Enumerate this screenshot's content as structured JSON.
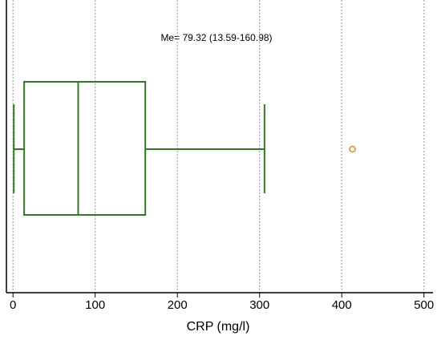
{
  "chart_data": {
    "type": "box",
    "annotation": "Me= 79.32 (13.59-160.98)",
    "x_label": "CRP (mg/l)",
    "boxes": [
      {
        "whisker_low": 1,
        "q1": 13.59,
        "median": 79.32,
        "q3": 160.98,
        "whisker_high": 306,
        "outliers": [
          413
        ],
        "color": "#2e7d1f",
        "outlier_color": "#e08a1e"
      }
    ],
    "xlim": [
      -8,
      511
    ],
    "xticks": [
      0,
      100,
      200,
      300,
      400,
      500
    ],
    "grid": true
  }
}
